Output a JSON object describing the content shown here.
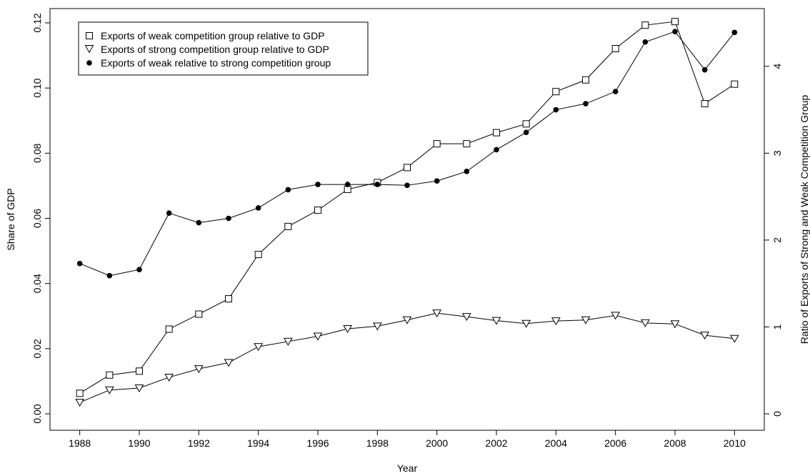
{
  "chart_data": {
    "type": "line",
    "xlabel": "Year",
    "ylabel": "Share of GDP",
    "y2label": "Ratio of Exports of Strong and Weak Competition Group",
    "x": [
      1988,
      1989,
      1990,
      1991,
      1992,
      1993,
      1994,
      1995,
      1996,
      1997,
      1998,
      1999,
      2000,
      2001,
      2002,
      2003,
      2004,
      2005,
      2006,
      2007,
      2008,
      2009,
      2010
    ],
    "xlim": [
      1987,
      2011
    ],
    "x_ticks": [
      "1988",
      "1990",
      "1992",
      "1994",
      "1996",
      "1998",
      "2000",
      "2002",
      "2004",
      "2006",
      "2008",
      "2010"
    ],
    "ylim": [
      0,
      0.12
    ],
    "y_ticks": [
      "0.00",
      "0.02",
      "0.04",
      "0.06",
      "0.08",
      "0.10",
      "0.12"
    ],
    "y2lim": [
      0,
      4.5
    ],
    "y2_ticks": [
      "0",
      "1",
      "2",
      "3",
      "4"
    ],
    "grid": false,
    "legend_position": "top-left",
    "series": [
      {
        "name": "Exports of weak competition group relative to GDP",
        "marker": "open-square",
        "axis": "left",
        "values": [
          0.0063,
          0.0119,
          0.0131,
          0.026,
          0.0306,
          0.0353,
          0.0489,
          0.0575,
          0.0625,
          0.0689,
          0.071,
          0.0756,
          0.0829,
          0.0829,
          0.0863,
          0.089,
          0.0989,
          0.1025,
          0.1121,
          0.1193,
          0.1204,
          0.0952,
          0.1012
        ]
      },
      {
        "name": "Exports of strong competition group relative to GDP",
        "marker": "open-triangle-down",
        "axis": "left",
        "values": [
          0.0035,
          0.0073,
          0.0079,
          0.0112,
          0.0138,
          0.0157,
          0.0206,
          0.0222,
          0.0238,
          0.0261,
          0.0269,
          0.0288,
          0.0309,
          0.0298,
          0.0286,
          0.0277,
          0.0285,
          0.0288,
          0.0302,
          0.0279,
          0.0276,
          0.0241,
          0.0231
        ]
      },
      {
        "name": "Exports of weak relative to strong competition group",
        "marker": "filled-circle",
        "axis": "right",
        "values": [
          1.73,
          1.59,
          1.66,
          2.31,
          2.2,
          2.25,
          2.37,
          2.58,
          2.64,
          2.64,
          2.64,
          2.63,
          2.68,
          2.79,
          3.04,
          3.24,
          3.5,
          3.57,
          3.71,
          4.28,
          4.4,
          3.96,
          4.39
        ]
      }
    ]
  }
}
